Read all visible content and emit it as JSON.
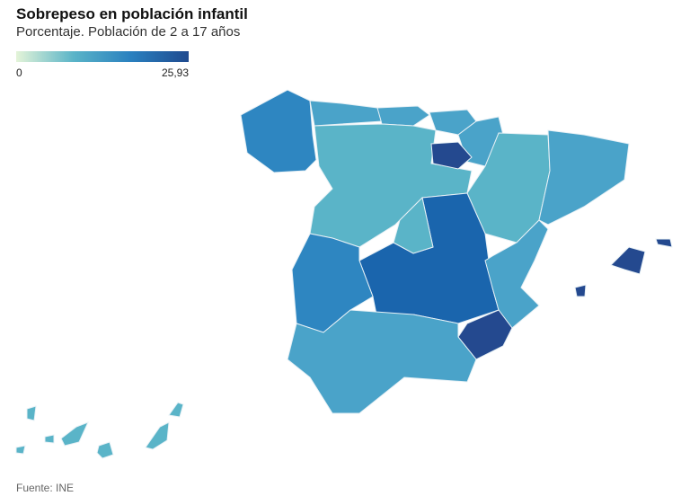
{
  "header": {
    "title": "Sobrepeso en población infantil",
    "subtitle": "Porcentaje. Población de 2 a 17 años"
  },
  "legend": {
    "min": 0,
    "max": {
      "value": 25.93,
      "label": "25,93"
    }
  },
  "footer": {
    "source": "Fuente: INE"
  }
}
